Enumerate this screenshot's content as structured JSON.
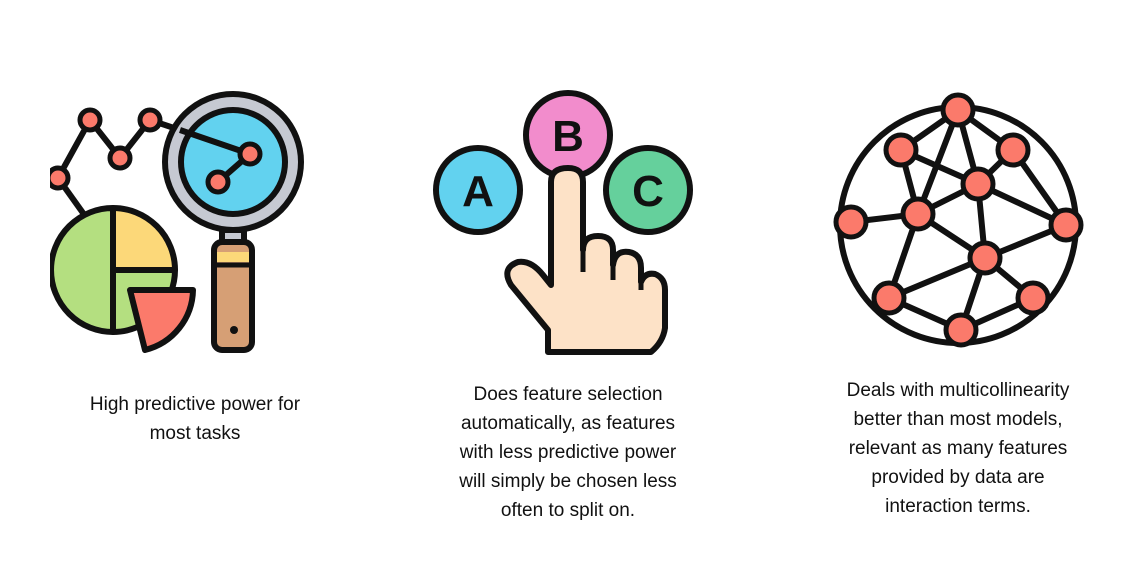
{
  "panels": [
    {
      "icon": "analytics-magnifier-chart-icon",
      "caption": "High predictive power for\nmost tasks"
    },
    {
      "icon": "hand-choosing-abc-icon",
      "choices": [
        "A",
        "B",
        "C"
      ],
      "caption": "Does feature selection\nautomatically, as features\nwith less predictive power\nwill simply be chosen less\noften to split on."
    },
    {
      "icon": "network-graph-icon",
      "caption": "Deals with multicollinearity\nbetter than most models,\nrelevant as many features\nprovided by data are\ninteraction terms."
    }
  ],
  "colors": {
    "outline": "#111111",
    "coral": "#fb7a6b",
    "yellow": "#fcd879",
    "green": "#b4df80",
    "sky": "#62d2ef",
    "pink": "#f28ccc",
    "mint": "#65d09c",
    "skin": "#fde2c7",
    "handle": "#d69f75"
  }
}
